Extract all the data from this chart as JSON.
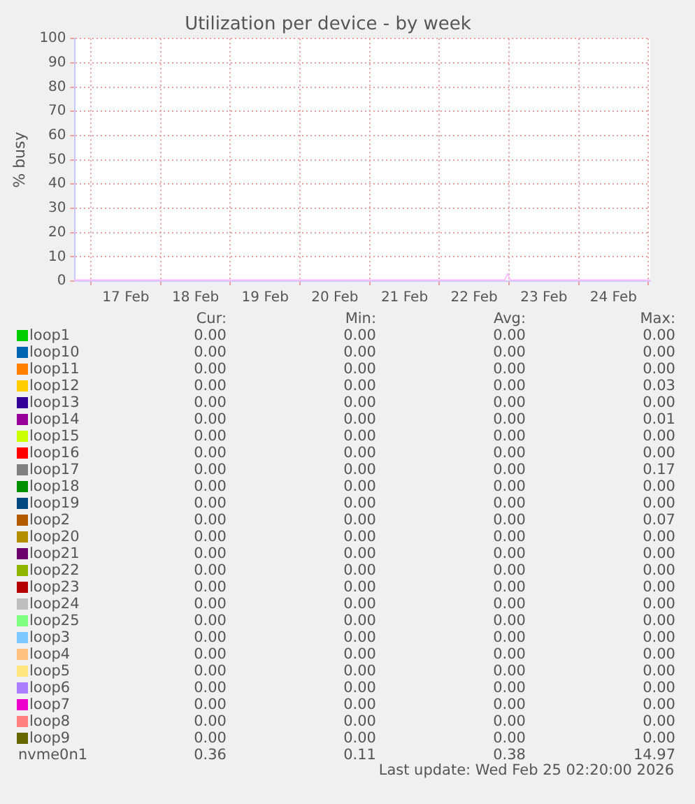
{
  "chart_data": {
    "type": "line",
    "title": "Utilization per device - by week",
    "ylabel": "% busy",
    "x": [
      "2026-02-16T18:20",
      "2026-02-17T12:00",
      "2026-02-18T12:00",
      "2026-02-19T12:00",
      "2026-02-20T12:00",
      "2026-02-21T12:00",
      "2026-02-22T12:00",
      "2026-02-22T22:30",
      "2026-02-22T23:30",
      "2026-02-23T00:30",
      "2026-02-24T12:00",
      "2026-02-25T00:40"
    ],
    "xlim": [
      "2026-02-16T18:20",
      "2026-02-25T00:40"
    ],
    "xticks": [
      {
        "value": "2026-02-17",
        "label": null
      },
      {
        "value": "2026-02-17T12:00",
        "label": "17 Feb"
      },
      {
        "value": "2026-02-18",
        "label": null
      },
      {
        "value": "2026-02-18T12:00",
        "label": "18 Feb"
      },
      {
        "value": "2026-02-19",
        "label": null
      },
      {
        "value": "2026-02-19T12:00",
        "label": "19 Feb"
      },
      {
        "value": "2026-02-20",
        "label": null
      },
      {
        "value": "2026-02-20T12:00",
        "label": "20 Feb"
      },
      {
        "value": "2026-02-21",
        "label": null
      },
      {
        "value": "2026-02-21T12:00",
        "label": "21 Feb"
      },
      {
        "value": "2026-02-22",
        "label": null
      },
      {
        "value": "2026-02-22T12:00",
        "label": "22 Feb"
      },
      {
        "value": "2026-02-23",
        "label": null
      },
      {
        "value": "2026-02-23T12:00",
        "label": "23 Feb"
      },
      {
        "value": "2026-02-24",
        "label": null
      },
      {
        "value": "2026-02-24T12:00",
        "label": "24 Feb"
      },
      {
        "value": "2026-02-25",
        "label": null
      }
    ],
    "ylim": [
      0,
      100
    ],
    "yticks": [
      0,
      10,
      20,
      30,
      40,
      50,
      60,
      70,
      80,
      90,
      100
    ],
    "grid": true,
    "legend": "bottom",
    "marker": "none",
    "line_style": "solid",
    "series": [
      {
        "name": "loop1",
        "color": "#00cc00",
        "values": [
          null,
          null,
          null,
          null,
          null,
          null,
          null,
          null,
          null,
          null,
          null,
          null
        ]
      },
      {
        "name": "loop10",
        "color": "#0066b3",
        "values": [
          null,
          null,
          null,
          null,
          null,
          null,
          null,
          null,
          null,
          null,
          null,
          null
        ]
      },
      {
        "name": "loop11",
        "color": "#ff8000",
        "values": [
          null,
          null,
          null,
          null,
          null,
          null,
          null,
          null,
          null,
          null,
          null,
          null
        ]
      },
      {
        "name": "loop12",
        "color": "#ffcc00",
        "values": [
          null,
          null,
          null,
          null,
          null,
          null,
          null,
          null,
          null,
          null,
          null,
          null
        ]
      },
      {
        "name": "loop13",
        "color": "#330099",
        "values": [
          null,
          null,
          null,
          null,
          null,
          null,
          null,
          null,
          null,
          null,
          null,
          null
        ]
      },
      {
        "name": "loop14",
        "color": "#990099",
        "values": [
          null,
          null,
          null,
          null,
          null,
          null,
          null,
          null,
          null,
          null,
          null,
          null
        ]
      },
      {
        "name": "loop15",
        "color": "#ccff00",
        "values": [
          null,
          null,
          null,
          null,
          null,
          null,
          null,
          null,
          null,
          null,
          null,
          null
        ]
      },
      {
        "name": "loop16",
        "color": "#ff0000",
        "values": [
          null,
          null,
          null,
          null,
          null,
          null,
          null,
          null,
          null,
          null,
          null,
          null
        ]
      },
      {
        "name": "loop17",
        "color": "#808080",
        "values": [
          null,
          null,
          null,
          null,
          null,
          null,
          null,
          null,
          null,
          null,
          null,
          null
        ]
      },
      {
        "name": "loop18",
        "color": "#008f00",
        "values": [
          null,
          null,
          null,
          null,
          null,
          null,
          null,
          null,
          null,
          null,
          null,
          null
        ]
      },
      {
        "name": "loop19",
        "color": "#00487d",
        "values": [
          null,
          null,
          null,
          null,
          null,
          null,
          null,
          null,
          null,
          null,
          null,
          null
        ]
      },
      {
        "name": "loop2",
        "color": "#b35a00",
        "values": [
          null,
          null,
          null,
          null,
          null,
          null,
          null,
          null,
          null,
          null,
          null,
          null
        ]
      },
      {
        "name": "loop20",
        "color": "#b38f00",
        "values": [
          null,
          null,
          null,
          null,
          null,
          null,
          null,
          null,
          null,
          null,
          null,
          null
        ]
      },
      {
        "name": "loop21",
        "color": "#6b006b",
        "values": [
          null,
          null,
          null,
          null,
          null,
          null,
          null,
          null,
          null,
          null,
          null,
          null
        ]
      },
      {
        "name": "loop22",
        "color": "#8fb300",
        "values": [
          null,
          null,
          null,
          null,
          null,
          null,
          null,
          null,
          null,
          null,
          null,
          null
        ]
      },
      {
        "name": "loop23",
        "color": "#b30000",
        "values": [
          null,
          null,
          null,
          null,
          null,
          null,
          null,
          null,
          null,
          null,
          null,
          null
        ]
      },
      {
        "name": "loop24",
        "color": "#bebebe",
        "values": [
          null,
          null,
          null,
          null,
          null,
          null,
          null,
          null,
          null,
          null,
          null,
          null
        ]
      },
      {
        "name": "loop25",
        "color": "#80ff80",
        "values": [
          null,
          null,
          null,
          null,
          null,
          null,
          null,
          null,
          null,
          null,
          null,
          null
        ]
      },
      {
        "name": "loop3",
        "color": "#80c9ff",
        "values": [
          null,
          null,
          null,
          null,
          null,
          null,
          null,
          null,
          null,
          null,
          null,
          null
        ]
      },
      {
        "name": "loop4",
        "color": "#ffc080",
        "values": [
          null,
          null,
          null,
          null,
          null,
          null,
          null,
          null,
          null,
          null,
          null,
          null
        ]
      },
      {
        "name": "loop5",
        "color": "#ffe680",
        "values": [
          null,
          null,
          null,
          null,
          null,
          null,
          null,
          null,
          null,
          null,
          null,
          null
        ]
      },
      {
        "name": "loop6",
        "color": "#aa80ff",
        "values": [
          null,
          null,
          null,
          null,
          null,
          null,
          null,
          null,
          null,
          null,
          null,
          null
        ]
      },
      {
        "name": "loop7",
        "color": "#ee00cc",
        "values": [
          null,
          null,
          null,
          null,
          null,
          null,
          null,
          null,
          null,
          null,
          null,
          null
        ]
      },
      {
        "name": "loop8",
        "color": "#ff8080",
        "values": [
          null,
          null,
          null,
          null,
          null,
          null,
          null,
          null,
          null,
          null,
          null,
          null
        ]
      },
      {
        "name": "loop9",
        "color": "#666600",
        "values": [
          null,
          null,
          null,
          null,
          null,
          null,
          null,
          null,
          null,
          null,
          null,
          null
        ]
      },
      {
        "name": "nvme0n1",
        "color": "#ffbfff",
        "values": [
          0.4,
          0.4,
          0.4,
          0.4,
          0.4,
          0.4,
          0.4,
          0.4,
          3,
          0.4,
          0.4,
          0.4
        ]
      }
    ],
    "annotations": [
      "Cur:",
      "Min:",
      "Avg:",
      "Max:",
      "0.00",
      "0.00",
      "0.00",
      "0.00",
      "0.00",
      "0.00",
      "0.00",
      "0.00",
      "0.00",
      "0.00",
      "0.00",
      "0.00",
      "0.00",
      "0.00",
      "0.00",
      "0.03",
      "0.00",
      "0.00",
      "0.00",
      "0.00",
      "0.00",
      "0.00",
      "0.00",
      "0.01",
      "0.00",
      "0.00",
      "0.00",
      "0.00",
      "0.00",
      "0.00",
      "0.00",
      "0.00",
      "0.00",
      "0.00",
      "0.00",
      "0.17",
      "0.00",
      "0.00",
      "0.00",
      "0.00",
      "0.00",
      "0.00",
      "0.00",
      "0.00",
      "0.00",
      "0.00",
      "0.00",
      "0.07",
      "0.00",
      "0.00",
      "0.00",
      "0.00",
      "0.00",
      "0.00",
      "0.00",
      "0.00",
      "0.00",
      "0.00",
      "0.00",
      "0.00",
      "0.00",
      "0.00",
      "0.00",
      "0.00",
      "0.00",
      "0.00",
      "0.00",
      "0.00",
      "0.00",
      "0.00",
      "0.00",
      "0.00",
      "0.00",
      "0.00",
      "0.00",
      "0.00",
      "0.00",
      "0.00",
      "0.00",
      "0.00",
      "0.00",
      "0.00",
      "0.00",
      "0.00",
      "0.00",
      "0.00",
      "0.00",
      "0.00",
      "0.00",
      "0.00",
      "0.00",
      "0.00",
      "0.00",
      "0.00",
      "0.00",
      "0.00",
      "0.00",
      "0.00",
      "0.00",
      "0.00",
      "0.36",
      "0.11",
      "0.38",
      "14.97",
      "Last update: Wed Feb 25 02:20:00 2026"
    ]
  }
}
